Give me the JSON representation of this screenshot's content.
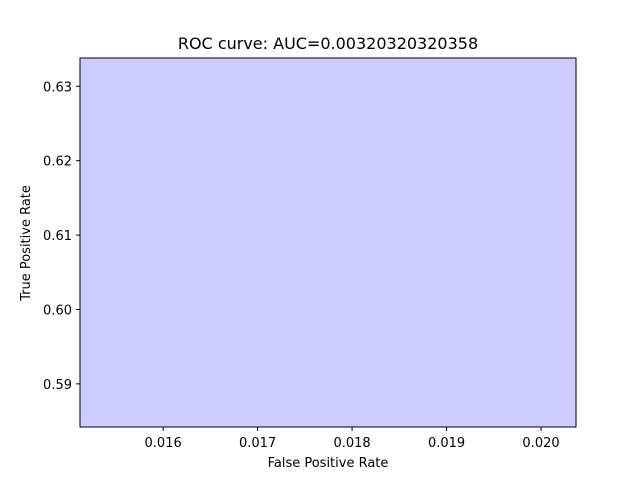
{
  "chart_data": {
    "type": "area",
    "title": "ROC curve: AUC=0.00320320320358",
    "xlabel": "False Positive Rate",
    "ylabel": "True Positive Rate",
    "xlim": [
      0.01512,
      0.02037
    ],
    "ylim": [
      0.5842,
      0.6338
    ],
    "xticks": [
      0.016,
      0.017,
      0.018,
      0.019,
      0.02
    ],
    "xtick_labels": [
      "0.016",
      "0.017",
      "0.018",
      "0.019",
      "0.020"
    ],
    "yticks": [
      0.59,
      0.6,
      0.61,
      0.62,
      0.63
    ],
    "ytick_labels": [
      "0.59",
      "0.60",
      "0.61",
      "0.62",
      "0.63"
    ],
    "series": [
      {
        "fill_color": "#ccccff",
        "x": [
          0.01512,
          0.02037,
          0.02037,
          0.01512
        ],
        "y": [
          0.5842,
          0.5842,
          0.6338,
          0.6338
        ]
      }
    ],
    "grid": false
  }
}
